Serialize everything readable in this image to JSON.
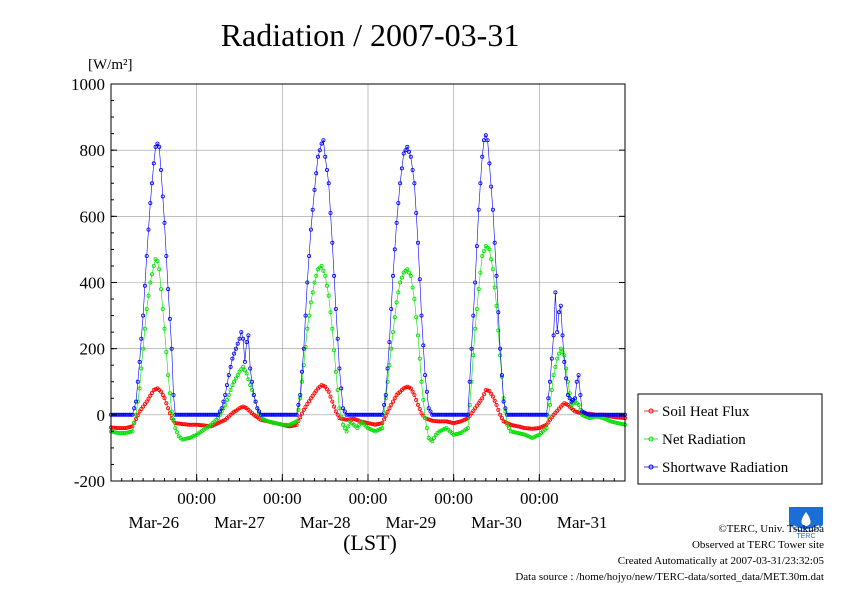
{
  "title": "Radiation / 2007-03-31",
  "colors": {
    "soil": "#ff0000",
    "net": "#00e000",
    "shortwave": "#0000ff",
    "grid": "#999999",
    "logo": "#1a6fd6"
  },
  "chart_data": {
    "type": "line",
    "ylabel": "[W/m²]",
    "xlabel": "(LST)",
    "ylim": [
      -200,
      1000
    ],
    "yticks": [
      -200,
      0,
      200,
      400,
      600,
      800,
      1000
    ],
    "x_range_hours": [
      -12,
      132
    ],
    "date_labels": [
      "Mar-26",
      "Mar-27",
      "Mar-28",
      "Mar-29",
      "Mar-30",
      "Mar-31"
    ],
    "time_label": "00:00",
    "grid": true,
    "legend_position": "right-bottom",
    "series": [
      {
        "name": "Soil Heat Flux",
        "color_key": "soil",
        "points": [
          [
            -12,
            -38
          ],
          [
            -10,
            -40
          ],
          [
            -8,
            -40
          ],
          [
            -6,
            -35
          ],
          [
            -4,
            10
          ],
          [
            -2,
            40
          ],
          [
            0,
            75
          ],
          [
            1,
            80
          ],
          [
            2,
            70
          ],
          [
            3,
            50
          ],
          [
            4,
            20
          ],
          [
            5,
            -10
          ],
          [
            6,
            -25
          ],
          [
            8,
            -28
          ],
          [
            10,
            -30
          ],
          [
            12,
            -30
          ],
          [
            14,
            -32
          ],
          [
            16,
            -35
          ],
          [
            18,
            -25
          ],
          [
            20,
            -15
          ],
          [
            22,
            5
          ],
          [
            24,
            20
          ],
          [
            25,
            25
          ],
          [
            26,
            20
          ],
          [
            27,
            10
          ],
          [
            28,
            0
          ],
          [
            30,
            -15
          ],
          [
            32,
            -20
          ],
          [
            34,
            -25
          ],
          [
            36,
            -30
          ],
          [
            38,
            -35
          ],
          [
            40,
            -30
          ],
          [
            42,
            15
          ],
          [
            44,
            50
          ],
          [
            46,
            80
          ],
          [
            47,
            90
          ],
          [
            48,
            85
          ],
          [
            49,
            70
          ],
          [
            50,
            40
          ],
          [
            51,
            10
          ],
          [
            52,
            -10
          ],
          [
            54,
            -15
          ],
          [
            56,
            -12
          ],
          [
            58,
            -20
          ],
          [
            60,
            -25
          ],
          [
            62,
            -30
          ],
          [
            64,
            -25
          ],
          [
            66,
            20
          ],
          [
            68,
            60
          ],
          [
            70,
            80
          ],
          [
            71,
            85
          ],
          [
            72,
            80
          ],
          [
            73,
            60
          ],
          [
            74,
            30
          ],
          [
            75,
            5
          ],
          [
            76,
            -10
          ],
          [
            78,
            -18
          ],
          [
            80,
            -20
          ],
          [
            82,
            -20
          ],
          [
            84,
            -25
          ],
          [
            86,
            -20
          ],
          [
            88,
            -10
          ],
          [
            90,
            20
          ],
          [
            92,
            50
          ],
          [
            93,
            75
          ],
          [
            94,
            72
          ],
          [
            95,
            55
          ],
          [
            96,
            30
          ],
          [
            97,
            0
          ],
          [
            98,
            -20
          ],
          [
            100,
            -30
          ],
          [
            102,
            -35
          ],
          [
            104,
            -40
          ],
          [
            106,
            -42
          ],
          [
            108,
            -40
          ],
          [
            110,
            -30
          ],
          [
            112,
            0
          ],
          [
            114,
            25
          ],
          [
            115,
            35
          ],
          [
            116,
            30
          ],
          [
            117,
            20
          ],
          [
            118,
            10
          ],
          [
            120,
            5
          ],
          [
            122,
            3
          ],
          [
            124,
            0
          ],
          [
            126,
            0
          ],
          [
            128,
            -5
          ],
          [
            130,
            -8
          ],
          [
            132,
            -10
          ]
        ]
      },
      {
        "name": "Net Radiation",
        "color_key": "net",
        "points": [
          [
            -12,
            -50
          ],
          [
            -10,
            -55
          ],
          [
            -8,
            -55
          ],
          [
            -6,
            -50
          ],
          [
            -5,
            0
          ],
          [
            -4,
            80
          ],
          [
            -3,
            200
          ],
          [
            -2,
            320
          ],
          [
            -1,
            400
          ],
          [
            0,
            450
          ],
          [
            0.5,
            470
          ],
          [
            1,
            465
          ],
          [
            1.5,
            440
          ],
          [
            2,
            380
          ],
          [
            3,
            260
          ],
          [
            4,
            120
          ],
          [
            5,
            10
          ],
          [
            6,
            -40
          ],
          [
            7,
            -65
          ],
          [
            8,
            -75
          ],
          [
            10,
            -70
          ],
          [
            12,
            -60
          ],
          [
            14,
            -45
          ],
          [
            16,
            -30
          ],
          [
            18,
            -10
          ],
          [
            20,
            30
          ],
          [
            21,
            60
          ],
          [
            22,
            90
          ],
          [
            23,
            110
          ],
          [
            24,
            130
          ],
          [
            25,
            145
          ],
          [
            26,
            125
          ],
          [
            27,
            90
          ],
          [
            28,
            60
          ],
          [
            29,
            20
          ],
          [
            30,
            -10
          ],
          [
            32,
            -20
          ],
          [
            34,
            -25
          ],
          [
            36,
            -30
          ],
          [
            38,
            -30
          ],
          [
            40,
            -20
          ],
          [
            41,
            50
          ],
          [
            42,
            150
          ],
          [
            43,
            260
          ],
          [
            44,
            340
          ],
          [
            45,
            400
          ],
          [
            46,
            440
          ],
          [
            47,
            450
          ],
          [
            48,
            420
          ],
          [
            49,
            360
          ],
          [
            50,
            260
          ],
          [
            51,
            130
          ],
          [
            52,
            20
          ],
          [
            53,
            -30
          ],
          [
            54,
            -50
          ],
          [
            55,
            -20
          ],
          [
            56,
            -30
          ],
          [
            57,
            -40
          ],
          [
            58,
            -20
          ],
          [
            60,
            -40
          ],
          [
            62,
            -50
          ],
          [
            64,
            -40
          ],
          [
            65,
            50
          ],
          [
            66,
            150
          ],
          [
            67,
            250
          ],
          [
            68,
            340
          ],
          [
            69,
            400
          ],
          [
            70,
            430
          ],
          [
            71,
            440
          ],
          [
            72,
            420
          ],
          [
            73,
            350
          ],
          [
            74,
            240
          ],
          [
            75,
            100
          ],
          [
            76,
            -10
          ],
          [
            77,
            -70
          ],
          [
            78,
            -80
          ],
          [
            79,
            -60
          ],
          [
            80,
            -50
          ],
          [
            82,
            -40
          ],
          [
            84,
            -60
          ],
          [
            86,
            -55
          ],
          [
            88,
            -40
          ],
          [
            89,
            100
          ],
          [
            90,
            260
          ],
          [
            91,
            380
          ],
          [
            92,
            480
          ],
          [
            93,
            510
          ],
          [
            94,
            500
          ],
          [
            95,
            440
          ],
          [
            96,
            330
          ],
          [
            97,
            180
          ],
          [
            98,
            50
          ],
          [
            99,
            -30
          ],
          [
            100,
            -50
          ],
          [
            102,
            -55
          ],
          [
            104,
            -60
          ],
          [
            106,
            -70
          ],
          [
            108,
            -60
          ],
          [
            110,
            -40
          ],
          [
            111,
            30
          ],
          [
            112,
            120
          ],
          [
            113,
            170
          ],
          [
            114,
            200
          ],
          [
            115,
            180
          ],
          [
            116,
            100
          ],
          [
            117,
            30
          ],
          [
            118,
            40
          ],
          [
            119,
            30
          ],
          [
            120,
            0
          ],
          [
            122,
            -10
          ],
          [
            124,
            -5
          ],
          [
            126,
            -10
          ],
          [
            128,
            -20
          ],
          [
            130,
            -25
          ],
          [
            132,
            -30
          ]
        ]
      },
      {
        "name": "Shortwave Radiation",
        "color_key": "shortwave",
        "points": [
          [
            -12,
            0
          ],
          [
            -8,
            0
          ],
          [
            -6,
            0
          ],
          [
            -5,
            40
          ],
          [
            -4,
            160
          ],
          [
            -3,
            300
          ],
          [
            -2,
            480
          ],
          [
            -1,
            640
          ],
          [
            0,
            760
          ],
          [
            0.5,
            810
          ],
          [
            1,
            820
          ],
          [
            1.5,
            810
          ],
          [
            2,
            740
          ],
          [
            3,
            580
          ],
          [
            4,
            380
          ],
          [
            5,
            200
          ],
          [
            5.5,
            60
          ],
          [
            6,
            0
          ],
          [
            12,
            0
          ],
          [
            16,
            0
          ],
          [
            18,
            0
          ],
          [
            19,
            20
          ],
          [
            20,
            60
          ],
          [
            21,
            120
          ],
          [
            22,
            170
          ],
          [
            23,
            200
          ],
          [
            24,
            230
          ],
          [
            24.5,
            250
          ],
          [
            25,
            230
          ],
          [
            25.5,
            160
          ],
          [
            26,
            220
          ],
          [
            26.5,
            240
          ],
          [
            27,
            140
          ],
          [
            28,
            60
          ],
          [
            29,
            20
          ],
          [
            30,
            0
          ],
          [
            36,
            0
          ],
          [
            40,
            0
          ],
          [
            41,
            60
          ],
          [
            42,
            200
          ],
          [
            43,
            400
          ],
          [
            44,
            560
          ],
          [
            45,
            680
          ],
          [
            46,
            780
          ],
          [
            47,
            820
          ],
          [
            47.5,
            830
          ],
          [
            48,
            780
          ],
          [
            49,
            700
          ],
          [
            50,
            520
          ],
          [
            51,
            320
          ],
          [
            52,
            140
          ],
          [
            53,
            20
          ],
          [
            54,
            0
          ],
          [
            60,
            0
          ],
          [
            64,
            0
          ],
          [
            65,
            60
          ],
          [
            66,
            220
          ],
          [
            67,
            420
          ],
          [
            68,
            580
          ],
          [
            69,
            700
          ],
          [
            70,
            790
          ],
          [
            71,
            810
          ],
          [
            72,
            780
          ],
          [
            73,
            700
          ],
          [
            74,
            520
          ],
          [
            75,
            300
          ],
          [
            76,
            120
          ],
          [
            77,
            20
          ],
          [
            78,
            0
          ],
          [
            84,
            0
          ],
          [
            88,
            0
          ],
          [
            89,
            200
          ],
          [
            90,
            400
          ],
          [
            91,
            620
          ],
          [
            92,
            780
          ],
          [
            92.5,
            830
          ],
          [
            93,
            845
          ],
          [
            93.5,
            830
          ],
          [
            94,
            760
          ],
          [
            95,
            620
          ],
          [
            96,
            420
          ],
          [
            97,
            200
          ],
          [
            98,
            40
          ],
          [
            99,
            0
          ],
          [
            106,
            0
          ],
          [
            110,
            0
          ],
          [
            111,
            100
          ],
          [
            112,
            240
          ],
          [
            112.5,
            370
          ],
          [
            113,
            250
          ],
          [
            113.5,
            310
          ],
          [
            114,
            330
          ],
          [
            114.5,
            240
          ],
          [
            115,
            160
          ],
          [
            116,
            60
          ],
          [
            117,
            40
          ],
          [
            118,
            50
          ],
          [
            118.5,
            100
          ],
          [
            119,
            120
          ],
          [
            119.5,
            60
          ],
          [
            120,
            10
          ],
          [
            122,
            0
          ],
          [
            126,
            0
          ],
          [
            130,
            0
          ],
          [
            132,
            0
          ]
        ]
      }
    ]
  },
  "legend": {
    "items": [
      "Soil Heat Flux",
      "Net Radiation",
      "Shortwave Radiation"
    ]
  },
  "credits": {
    "copyright": "©TERC, Univ. Tsukuba",
    "observed": "Observed at TERC Tower site",
    "created": "Created Automatically at 2007-03-31/23:32:05",
    "source": "Data source : /home/hojyo/new/TERC-data/sorted_data/MET.30m.dat"
  },
  "logo": {
    "icon": "terc-logo-icon",
    "text": "TERC"
  }
}
